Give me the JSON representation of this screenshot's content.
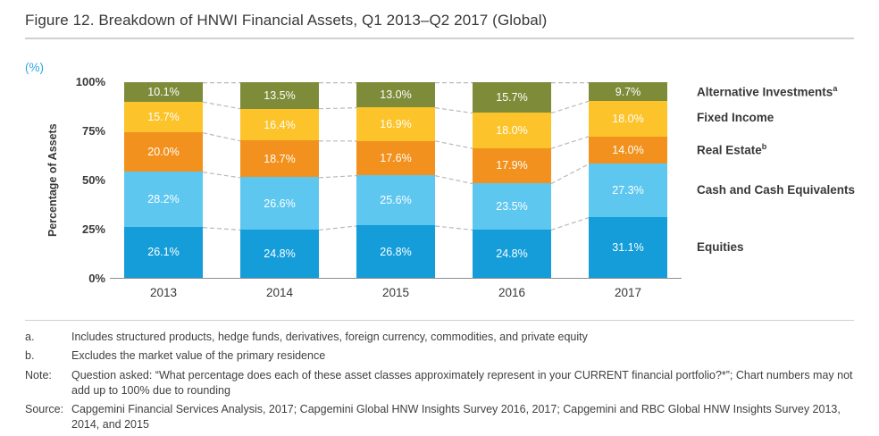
{
  "title": "Figure 12. Breakdown of HNWI Financial Assets, Q1 2013–Q2 2017 (Global)",
  "chart_data": {
    "type": "bar",
    "stacked": true,
    "unit_label": "(%)",
    "title": "Breakdown of HNWI Financial Assets, Q1 2013–Q2 2017 (Global)",
    "xlabel": "",
    "ylabel": "Percentage of Assets",
    "ylim": [
      0,
      100
    ],
    "ytick_labels": [
      "100%",
      "75%",
      "50%",
      "25%",
      "0%"
    ],
    "grid": false,
    "legend_position": "right",
    "connector_line_color": "#b9b9b9",
    "categories": [
      "2013",
      "2014",
      "2015",
      "2016",
      "2017"
    ],
    "series": [
      {
        "name": "Equities",
        "color": "#149dd9",
        "values": [
          26.1,
          24.8,
          26.8,
          24.8,
          31.1
        ]
      },
      {
        "name": "Cash and Cash Equivalents",
        "color": "#5ec7f0",
        "values": [
          28.2,
          26.6,
          25.6,
          23.5,
          27.3
        ]
      },
      {
        "name": "Real Estate",
        "sup": "b",
        "color": "#f2911d",
        "values": [
          20.0,
          18.7,
          17.6,
          17.9,
          14.0
        ]
      },
      {
        "name": "Fixed Income",
        "color": "#fcc32a",
        "values": [
          15.7,
          16.4,
          16.9,
          18.0,
          18.0
        ]
      },
      {
        "name": "Alternative Investments",
        "sup": "a",
        "color": "#7e8c3a",
        "values": [
          10.1,
          13.5,
          13.0,
          15.7,
          9.7
        ]
      }
    ]
  },
  "footnotes": [
    {
      "label": "a.",
      "text": "Includes structured products, hedge funds, derivatives, foreign currency, commodities, and private equity"
    },
    {
      "label": "b.",
      "text": "Excludes the market value of the primary residence"
    },
    {
      "label": "Note:",
      "text": "Question asked: “What percentage does each of these asset classes approximately represent in your CURRENT financial portfolio?*”; Chart numbers may not add up to 100% due to rounding"
    },
    {
      "label": "Source:",
      "text": "Capgemini Financial Services Analysis, 2017; Capgemini Global HNW Insights Survey 2016, 2017; Capgemini and RBC Global HNW Insights Survey 2013, 2014, and 2015"
    }
  ]
}
